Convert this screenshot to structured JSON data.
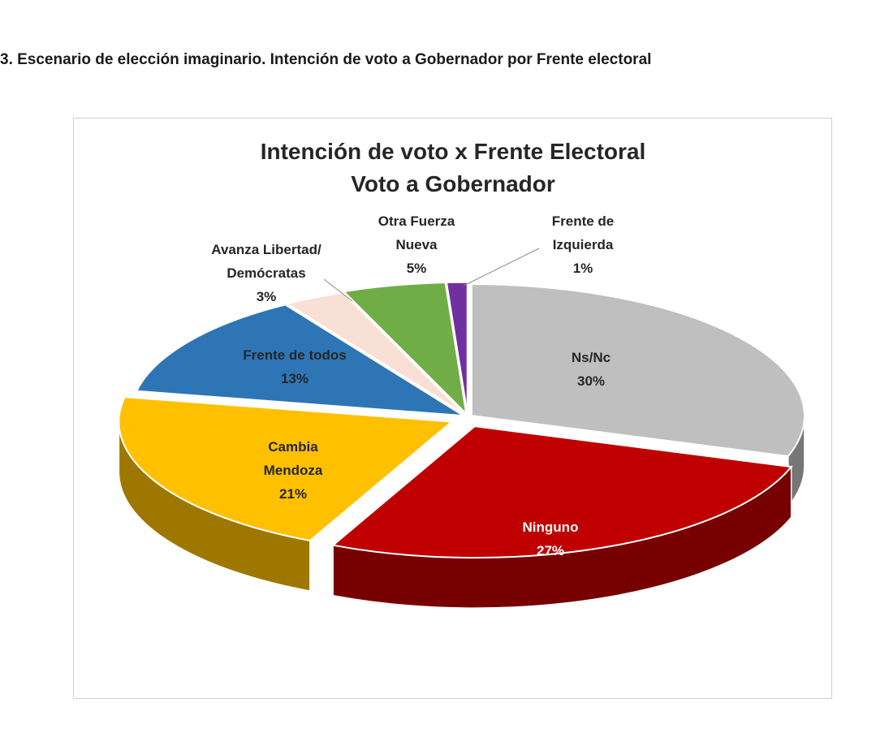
{
  "heading": "3. Escenario de elección imaginario. Intención de voto a Gobernador por Frente electoral",
  "chart_data": {
    "type": "pie",
    "title_lines": [
      "Intención de voto x Frente Electoral",
      "Voto a Gobernador"
    ],
    "slices": [
      {
        "label_lines": [
          "Ns/Nc"
        ],
        "value": 30,
        "value_label": "30%",
        "color": "#bfbfbf"
      },
      {
        "label_lines": [
          "Ninguno"
        ],
        "value": 27,
        "value_label": "27%",
        "color": "#c00000"
      },
      {
        "label_lines": [
          "Cambia",
          "Mendoza"
        ],
        "value": 21,
        "value_label": "21%",
        "color": "#ffc000"
      },
      {
        "label_lines": [
          "Frente de todos"
        ],
        "value": 13,
        "value_label": "13%",
        "color": "#2e75b6"
      },
      {
        "label_lines": [
          "Avanza Libertad/",
          "Demócratas"
        ],
        "value": 3,
        "value_label": "3%",
        "color": "#f8e0d6"
      },
      {
        "label_lines": [
          "Otra Fuerza",
          "Nueva"
        ],
        "value": 5,
        "value_label": "5%",
        "color": "#70ad47"
      },
      {
        "label_lines": [
          "Frente de",
          "Izquierda"
        ],
        "value": 1,
        "value_label": "1%",
        "color": "#7030a0"
      }
    ],
    "legend": "none",
    "style": "3d-exploded"
  }
}
